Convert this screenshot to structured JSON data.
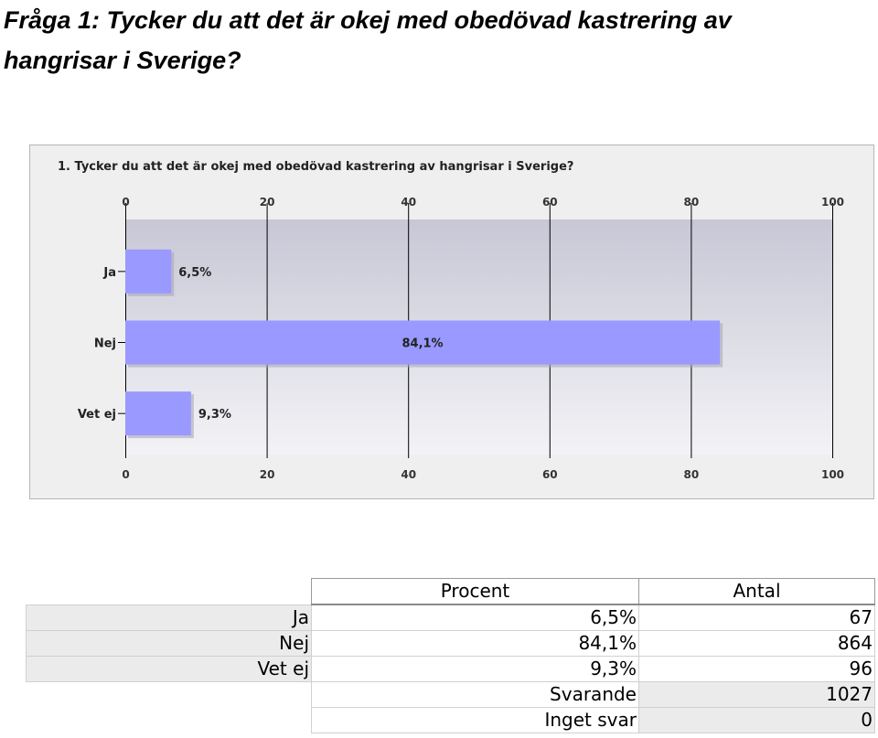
{
  "page": {
    "title": "Fråga 1: Tycker du att det är okej med obedövad kastrering av hangrisar i Sverige?"
  },
  "colors": {
    "bar": "#9999ff",
    "bar_edge": "#7b7bd6",
    "plot_bg_top": "#c7c7d6",
    "plot_bg_bottom": "#f3f3f6",
    "grid": "#000000"
  },
  "chart_data": {
    "type": "bar",
    "orientation": "horizontal",
    "title": "1. Tycker du att det är okej med obedövad kastrering av hangrisar i Sverige?",
    "categories": [
      "Ja",
      "Nej",
      "Vet ej"
    ],
    "values": [
      6.5,
      84.1,
      9.3
    ],
    "data_labels": [
      "6,5%",
      "84,1%",
      "9,3%"
    ],
    "xlim": [
      0,
      100
    ],
    "x_ticks": [
      0,
      20,
      40,
      60,
      80,
      100
    ],
    "x_tick_labels": [
      "0",
      "20",
      "40",
      "60",
      "80",
      "100"
    ],
    "axis_position": "top and bottom",
    "grid": true,
    "legend": false
  },
  "table": {
    "headers": [
      "Procent",
      "Antal"
    ],
    "rows": [
      {
        "label": "Ja",
        "percent": "6,5%",
        "count": "67"
      },
      {
        "label": "Nej",
        "percent": "84,1%",
        "count": "864"
      },
      {
        "label": "Vet ej",
        "percent": "9,3%",
        "count": "96"
      }
    ],
    "summary": [
      {
        "label": "Svarande",
        "value": "1027"
      },
      {
        "label": "Inget svar",
        "value": "0"
      }
    ]
  }
}
